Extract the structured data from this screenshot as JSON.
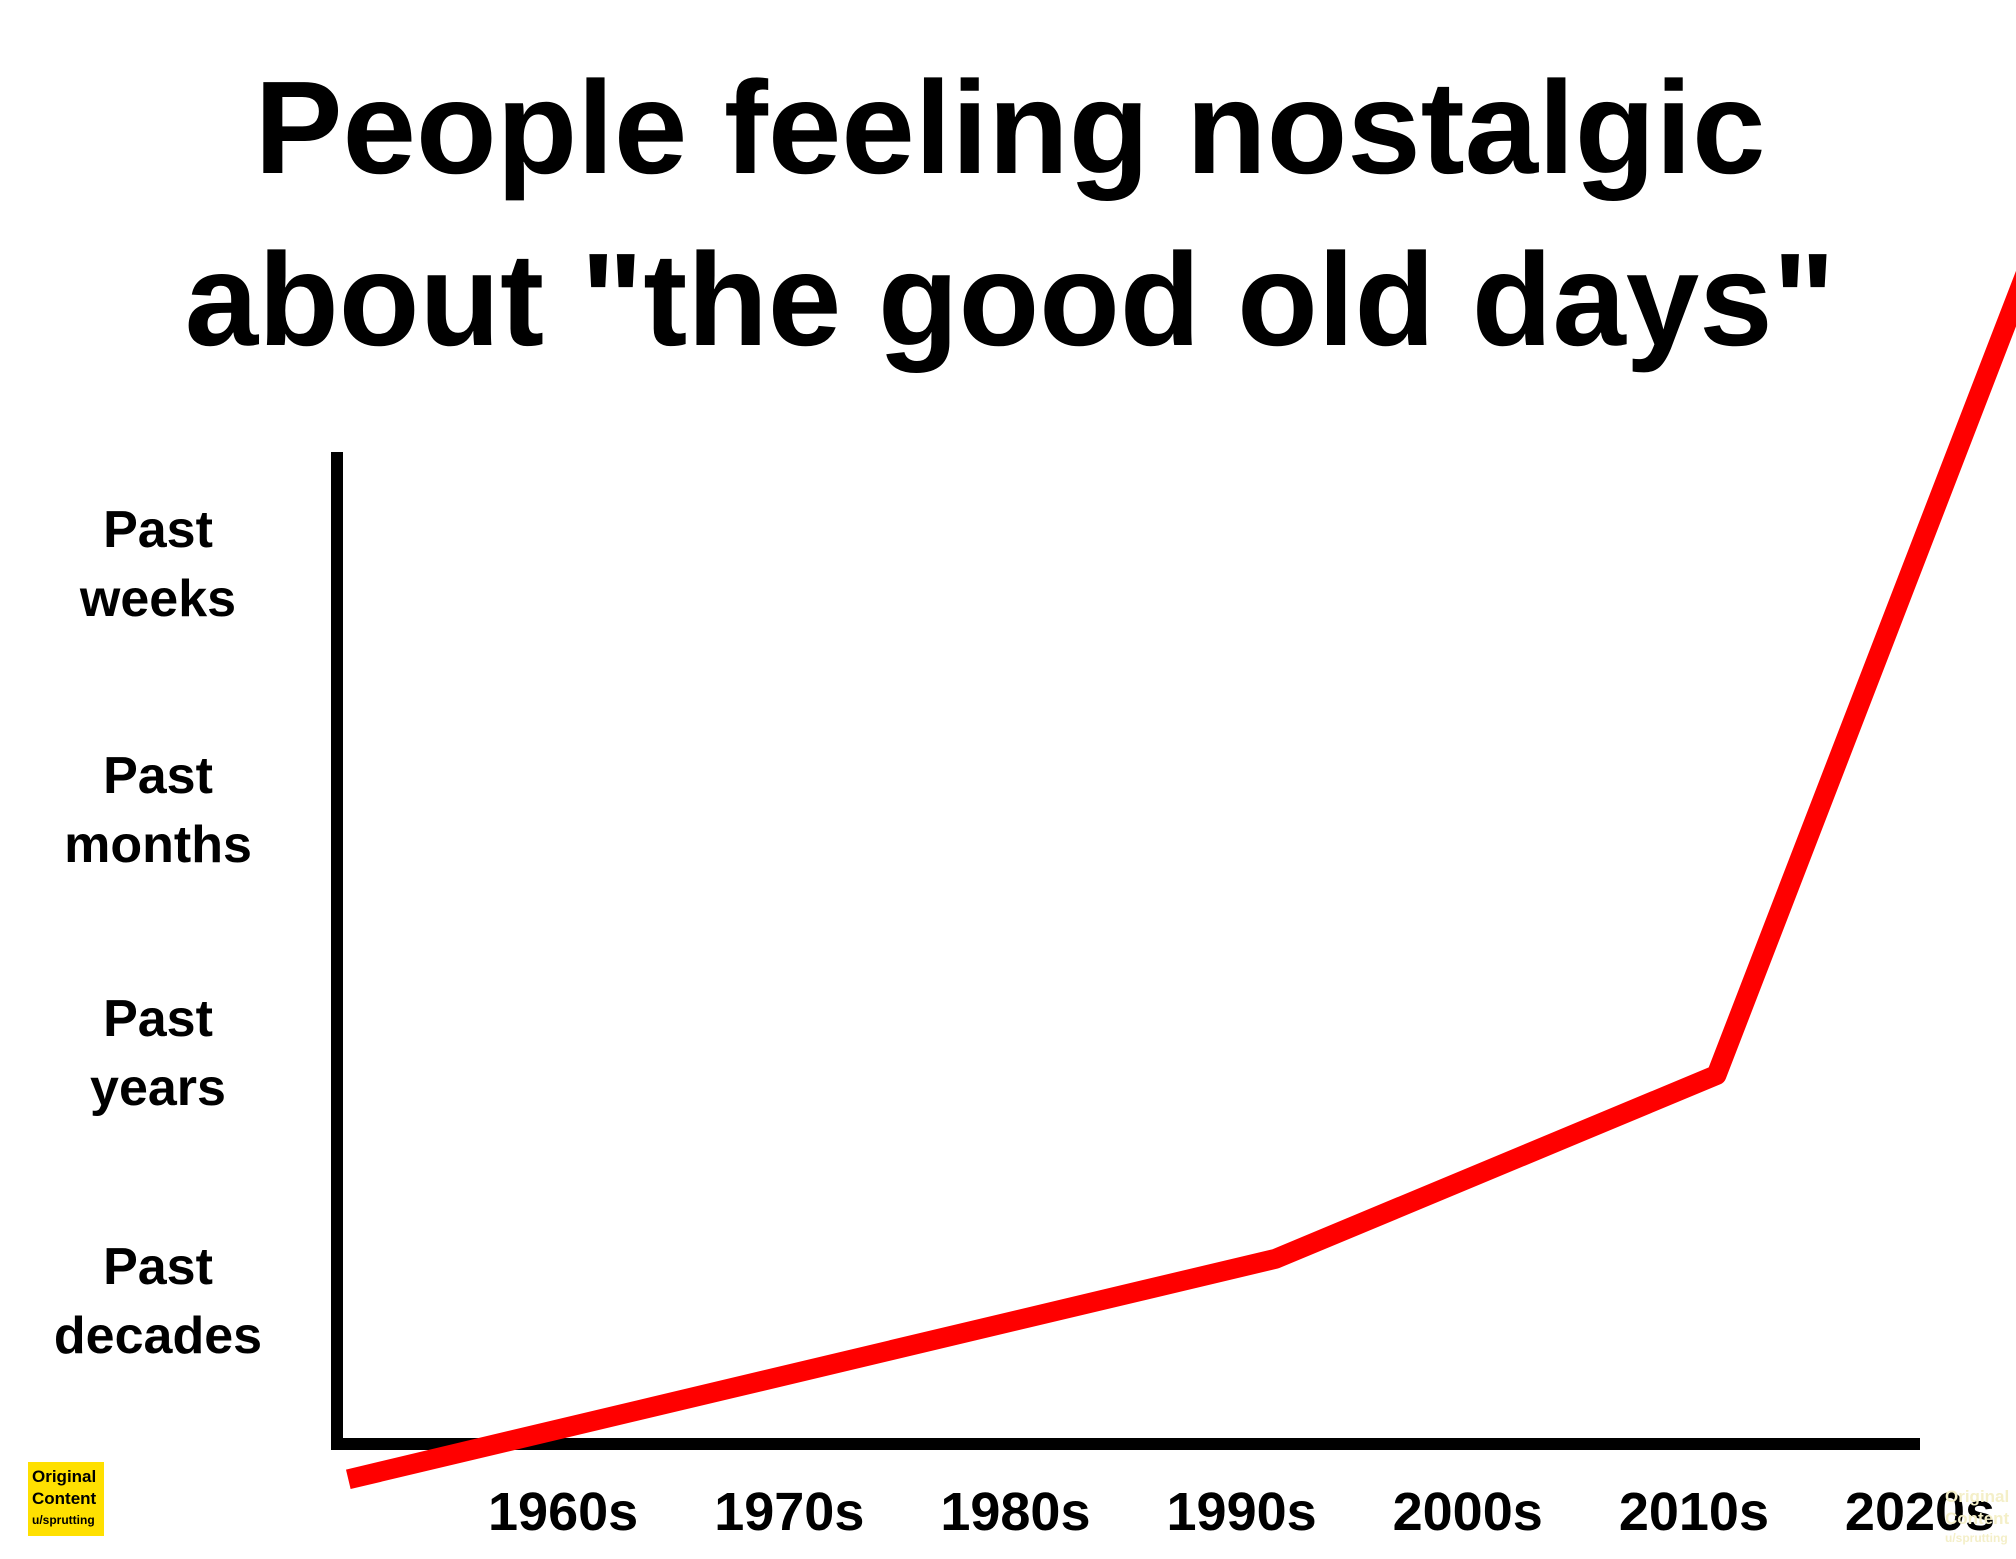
{
  "chart_data": {
    "type": "line",
    "title_lines": [
      "People feeling nostalgic",
      "about \"the good old days\""
    ],
    "categories": [
      "1960s",
      "1970s",
      "1980s",
      "1990s",
      "2000s",
      "2010s",
      "2020s"
    ],
    "y_labels": [
      [
        "Past",
        "weeks"
      ],
      [
        "Past",
        "months"
      ],
      [
        "Past",
        "years"
      ],
      [
        "Past",
        "decades"
      ]
    ],
    "series": [
      {
        "values": [
          {
            "x": 1955.5,
            "y": -0.65
          },
          {
            "x": 1996.5,
            "y": 0.25
          },
          {
            "x": 2016,
            "y": 1.0
          },
          {
            "x": 2030,
            "y": 4.35
          }
        ],
        "color": "#ff0000"
      }
    ],
    "x_range": [
      1955,
      2025
    ],
    "y_range": [
      -1.2,
      3.3
    ],
    "grid": false,
    "legend": "none"
  },
  "badge": {
    "lines": [
      "Original",
      "Content",
      "u/sprutting"
    ],
    "color": "#ffe000"
  }
}
